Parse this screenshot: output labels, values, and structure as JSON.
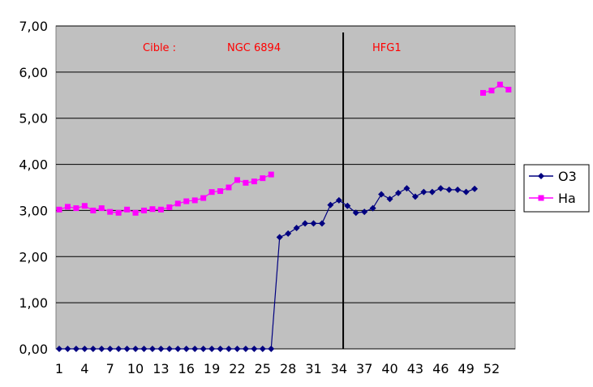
{
  "chart_data": {
    "type": "line",
    "x": [
      1,
      2,
      3,
      4,
      5,
      6,
      7,
      8,
      9,
      10,
      11,
      12,
      13,
      14,
      15,
      16,
      17,
      18,
      19,
      20,
      21,
      22,
      23,
      24,
      25,
      26,
      27,
      28,
      29,
      30,
      31,
      32,
      33,
      34,
      35,
      36,
      37,
      38,
      39,
      40,
      41,
      42,
      43,
      44,
      45,
      46,
      47,
      48,
      49,
      50,
      51,
      52,
      53,
      54
    ],
    "x_tick_labels": [
      "1",
      "4",
      "7",
      "10",
      "13",
      "16",
      "19",
      "22",
      "25",
      "28",
      "31",
      "34",
      "37",
      "40",
      "43",
      "46",
      "49",
      "52"
    ],
    "ylim": [
      0,
      7
    ],
    "y_tick_labels": [
      "0,00",
      "1,00",
      "2,00",
      "3,00",
      "4,00",
      "5,00",
      "6,00",
      "7,00"
    ],
    "grid": true,
    "legend_position": "right",
    "plot_background": "#c0c0c0",
    "series": [
      {
        "name": "O3",
        "color": "#000080",
        "marker": "diamond",
        "values": [
          0,
          0,
          0,
          0,
          0,
          0,
          0,
          0,
          0,
          0,
          0,
          0,
          0,
          0,
          0,
          0,
          0,
          0,
          0,
          0,
          0,
          0,
          0,
          0,
          0,
          0,
          2.42,
          2.5,
          2.62,
          2.72,
          2.72,
          2.72,
          3.12,
          3.22,
          3.1,
          2.95,
          2.97,
          3.05,
          3.35,
          3.25,
          3.38,
          3.48,
          3.3,
          3.4,
          3.4,
          3.48,
          3.45,
          3.45,
          3.4,
          3.47,
          null,
          null,
          null,
          null
        ]
      },
      {
        "name": "Ha",
        "color": "#ff00ff",
        "marker": "square",
        "values": [
          3.02,
          3.08,
          3.05,
          3.1,
          3.0,
          3.05,
          2.97,
          2.95,
          3.02,
          2.95,
          3.0,
          3.03,
          3.02,
          3.07,
          3.15,
          3.2,
          3.22,
          3.27,
          3.4,
          3.42,
          3.5,
          3.66,
          3.6,
          3.63,
          3.7,
          3.78,
          null,
          null,
          null,
          null,
          null,
          null,
          null,
          null,
          null,
          null,
          null,
          null,
          null,
          null,
          null,
          null,
          null,
          null,
          null,
          null,
          null,
          null,
          null,
          null,
          5.55,
          5.6,
          5.73,
          5.62
        ]
      }
    ],
    "vline_x": 34.5,
    "annotations": [
      {
        "id": "cible",
        "text": "Cible :",
        "color": "#ff0000"
      },
      {
        "id": "ngc",
        "text": "NGC 6894",
        "color": "#ff0000"
      },
      {
        "id": "hfg",
        "text": "HFG1",
        "color": "#ff0000"
      }
    ]
  }
}
